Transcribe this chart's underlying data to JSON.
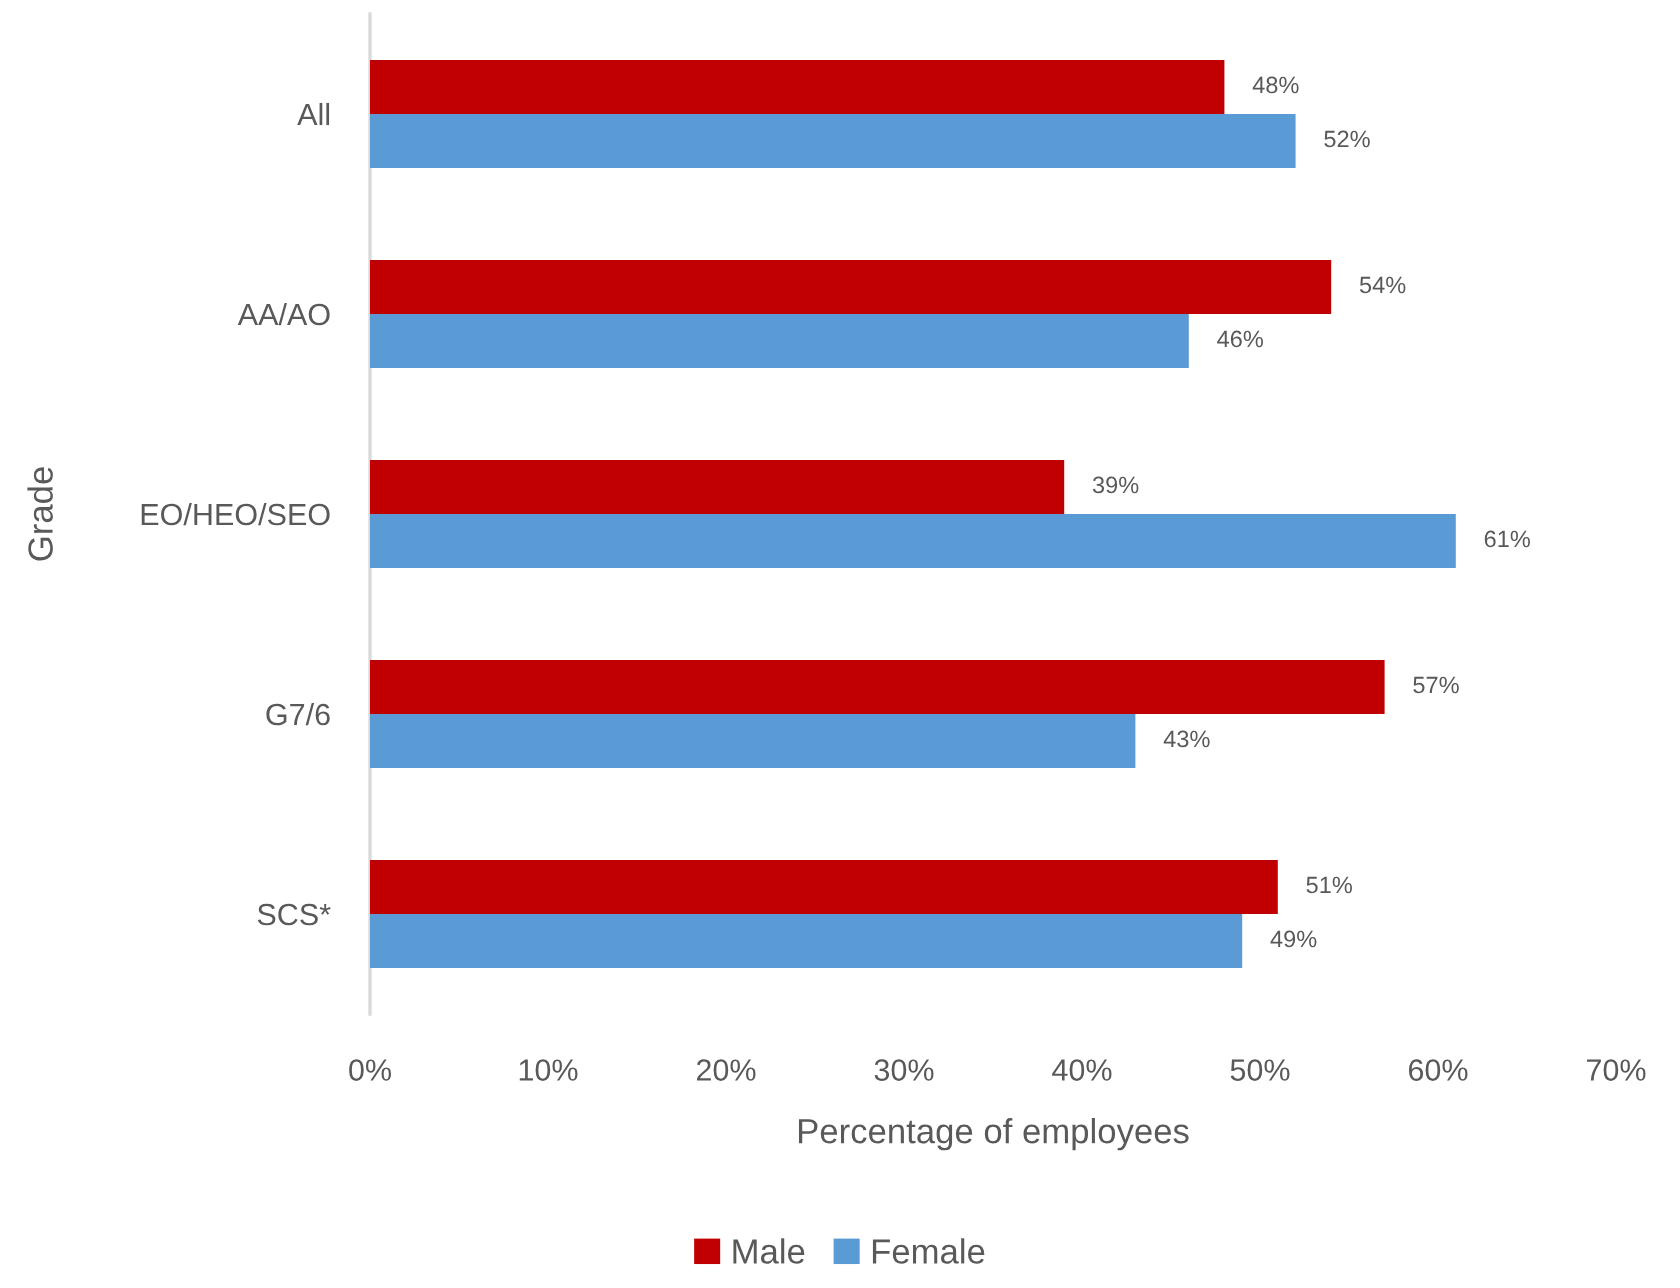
{
  "chart_data": {
    "type": "bar",
    "orientation": "horizontal",
    "xlabel": "Percentage of employees",
    "ylabel": "Grade",
    "categories": [
      "All",
      "AA/AO",
      "EO/HEO/SEO",
      "G7/6",
      "SCS*"
    ],
    "series": [
      {
        "name": "Male",
        "color": "#c00000",
        "values": [
          48,
          54,
          39,
          57,
          51
        ],
        "value_labels": [
          "48%",
          "54%",
          "39%",
          "57%",
          "51%"
        ]
      },
      {
        "name": "Female",
        "color": "#5b9bd5",
        "values": [
          52,
          46,
          61,
          43,
          49
        ],
        "value_labels": [
          "52%",
          "46%",
          "61%",
          "43%",
          "49%"
        ]
      }
    ],
    "xlim": [
      0,
      70
    ],
    "xticks": [
      {
        "value": 0,
        "label": "0%"
      },
      {
        "value": 10,
        "label": "10%"
      },
      {
        "value": 20,
        "label": "20%"
      },
      {
        "value": 30,
        "label": "30%"
      },
      {
        "value": 40,
        "label": "40%"
      },
      {
        "value": 50,
        "label": "50%"
      },
      {
        "value": 60,
        "label": "60%"
      },
      {
        "value": 70,
        "label": "70%"
      }
    ],
    "grid": false,
    "legend": "bottom"
  }
}
